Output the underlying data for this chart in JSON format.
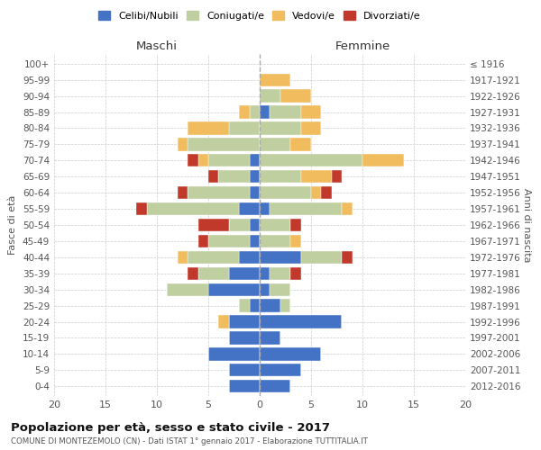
{
  "age_groups": [
    "0-4",
    "5-9",
    "10-14",
    "15-19",
    "20-24",
    "25-29",
    "30-34",
    "35-39",
    "40-44",
    "45-49",
    "50-54",
    "55-59",
    "60-64",
    "65-69",
    "70-74",
    "75-79",
    "80-84",
    "85-89",
    "90-94",
    "95-99",
    "100+"
  ],
  "birth_years": [
    "2012-2016",
    "2007-2011",
    "2002-2006",
    "1997-2001",
    "1992-1996",
    "1987-1991",
    "1982-1986",
    "1977-1981",
    "1972-1976",
    "1967-1971",
    "1962-1966",
    "1957-1961",
    "1952-1956",
    "1947-1951",
    "1942-1946",
    "1937-1941",
    "1932-1936",
    "1927-1931",
    "1922-1926",
    "1917-1921",
    "≤ 1916"
  ],
  "males": {
    "celibe": [
      3,
      3,
      5,
      3,
      3,
      1,
      5,
      3,
      2,
      1,
      1,
      2,
      1,
      1,
      1,
      0,
      0,
      0,
      0,
      0,
      0
    ],
    "coniugato": [
      0,
      0,
      0,
      0,
      0,
      1,
      4,
      3,
      5,
      4,
      2,
      9,
      6,
      3,
      4,
      7,
      3,
      1,
      0,
      0,
      0
    ],
    "vedovo": [
      0,
      0,
      0,
      0,
      1,
      0,
      0,
      0,
      1,
      0,
      0,
      0,
      0,
      0,
      1,
      1,
      4,
      1,
      0,
      0,
      0
    ],
    "divorziato": [
      0,
      0,
      0,
      0,
      0,
      0,
      0,
      1,
      0,
      1,
      3,
      1,
      1,
      1,
      1,
      0,
      0,
      0,
      0,
      0,
      0
    ]
  },
  "females": {
    "nubile": [
      3,
      4,
      6,
      2,
      8,
      2,
      1,
      1,
      4,
      0,
      0,
      1,
      0,
      0,
      0,
      0,
      0,
      1,
      0,
      0,
      0
    ],
    "coniugata": [
      0,
      0,
      0,
      0,
      0,
      1,
      2,
      2,
      4,
      3,
      3,
      7,
      5,
      4,
      10,
      3,
      4,
      3,
      2,
      0,
      0
    ],
    "vedova": [
      0,
      0,
      0,
      0,
      0,
      0,
      0,
      0,
      0,
      1,
      0,
      1,
      1,
      3,
      4,
      2,
      2,
      2,
      3,
      3,
      0
    ],
    "divorziata": [
      0,
      0,
      0,
      0,
      0,
      0,
      0,
      1,
      1,
      0,
      1,
      0,
      1,
      1,
      0,
      0,
      0,
      0,
      0,
      0,
      0
    ]
  },
  "colors": {
    "celibe": "#4472C4",
    "coniugato": "#BFCF9F",
    "vedovo": "#F0BC5E",
    "divorziato": "#C0392B"
  },
  "xlim": 20,
  "title": "Popolazione per età, sesso e stato civile - 2017",
  "subtitle": "COMUNE DI MONTEZEMOLO (CN) - Dati ISTAT 1° gennaio 2017 - Elaborazione TUTTITALIA.IT",
  "ylabel_left": "Fasce di età",
  "ylabel_right": "Anni di nascita",
  "xlabel_left": "Maschi",
  "xlabel_right": "Femmine",
  "bg_color": "#ffffff",
  "grid_color": "#cccccc",
  "legend_labels": [
    "Celibi/Nubili",
    "Coniugati/e",
    "Vedovi/e",
    "Divorziati/e"
  ]
}
